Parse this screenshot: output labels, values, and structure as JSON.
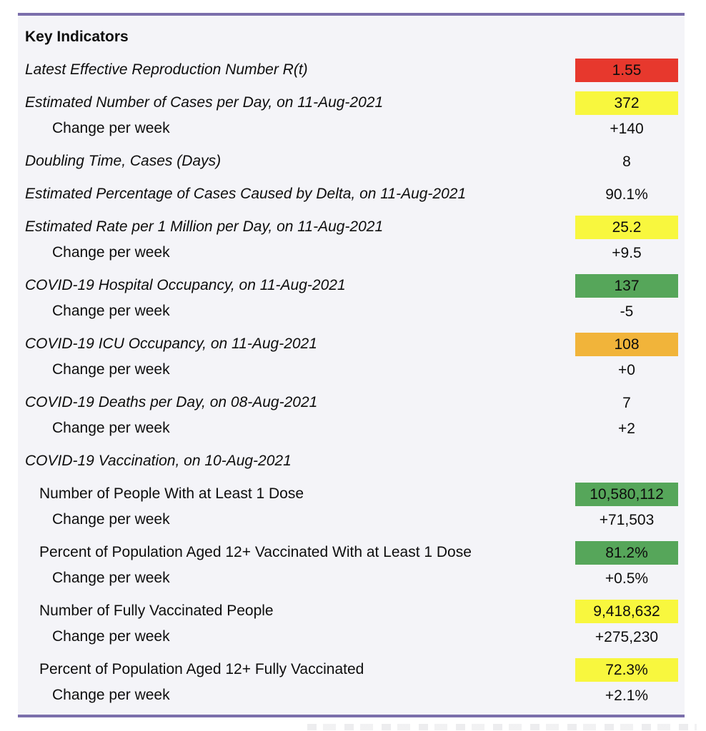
{
  "colors": {
    "red": "#E7382D",
    "yellow": "#F8F73E",
    "green": "#56A65A",
    "orange": "#F1B43A",
    "accent_line": "#7B6FAB",
    "panel_bg": "#F4F4F8"
  },
  "table": {
    "header": "Key Indicators",
    "rows": [
      {
        "label": "Latest Effective Reproduction Number R(t)",
        "value": "1.55",
        "highlight": "red",
        "kind": "indicator"
      },
      {
        "label": "Estimated Number of Cases per Day, on 11-Aug-2021",
        "value": "372",
        "highlight": "yellow",
        "kind": "indicator"
      },
      {
        "label": "Change per week",
        "value": "+140",
        "highlight": "none",
        "kind": "change"
      },
      {
        "label": "Doubling Time, Cases (Days)",
        "value": "8",
        "highlight": "none",
        "kind": "indicator"
      },
      {
        "label": "Estimated Percentage of Cases Caused by Delta, on 11-Aug-2021",
        "value": "90.1%",
        "highlight": "none",
        "kind": "indicator"
      },
      {
        "label": "Estimated Rate per 1 Million per Day, on 11-Aug-2021",
        "value": "25.2",
        "highlight": "yellow",
        "kind": "indicator"
      },
      {
        "label": "Change per week",
        "value": "+9.5",
        "highlight": "none",
        "kind": "change"
      },
      {
        "label": "COVID-19 Hospital Occupancy, on 11-Aug-2021",
        "value": "137",
        "highlight": "green",
        "kind": "indicator"
      },
      {
        "label": "Change per week",
        "value": "-5",
        "highlight": "none",
        "kind": "change"
      },
      {
        "label": "COVID-19 ICU Occupancy, on 11-Aug-2021",
        "value": "108",
        "highlight": "orange",
        "kind": "indicator"
      },
      {
        "label": "Change per week",
        "value": "+0",
        "highlight": "none",
        "kind": "change"
      },
      {
        "label": "COVID-19 Deaths per Day, on 08-Aug-2021",
        "value": "7",
        "highlight": "none",
        "kind": "indicator"
      },
      {
        "label": "Change per week",
        "value": "+2",
        "highlight": "none",
        "kind": "change"
      },
      {
        "label": "COVID-19 Vaccination, on 10-Aug-2021",
        "value": "",
        "highlight": "none",
        "kind": "indicator"
      },
      {
        "label": "Number of People With at Least 1 Dose",
        "value": "10,580,112",
        "highlight": "green",
        "kind": "subitem"
      },
      {
        "label": "Change per week",
        "value": "+71,503",
        "highlight": "none",
        "kind": "change"
      },
      {
        "label": "Percent of Population Aged 12+ Vaccinated With at Least 1 Dose",
        "value": "81.2%",
        "highlight": "green",
        "kind": "subitem"
      },
      {
        "label": "Change per week",
        "value": "+0.5%",
        "highlight": "none",
        "kind": "change"
      },
      {
        "label": "Number of Fully Vaccinated People",
        "value": "9,418,632",
        "highlight": "yellow",
        "kind": "subitem"
      },
      {
        "label": "Change per week",
        "value": "+275,230",
        "highlight": "none",
        "kind": "change"
      },
      {
        "label": "Percent of Population Aged 12+ Fully Vaccinated",
        "value": "72.3%",
        "highlight": "yellow",
        "kind": "subitem"
      },
      {
        "label": "Change per week",
        "value": "+2.1%",
        "highlight": "none",
        "kind": "change"
      }
    ]
  }
}
